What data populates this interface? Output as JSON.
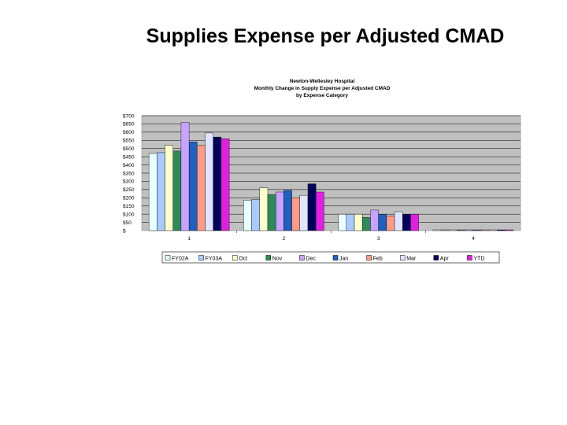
{
  "slide": {
    "title": "Supplies Expense per Adjusted CMAD"
  },
  "chart_data": {
    "type": "bar",
    "title_lines": [
      "Newton-Wellesley Hospital",
      "Monthly Change in Supply Expense per Adjusted CMAD",
      "by Expense Category"
    ],
    "categories": [
      "1",
      "2",
      "3",
      "4"
    ],
    "ylim": [
      0,
      700
    ],
    "y_ticks": [
      0,
      50,
      100,
      150,
      200,
      250,
      300,
      350,
      400,
      450,
      500,
      550,
      600,
      650,
      700
    ],
    "y_tick_labels": [
      "$",
      "$50",
      "$100",
      "$150",
      "$200",
      "$250",
      "$300",
      "$350",
      "$400",
      "$450",
      "$500",
      "$550",
      "$600",
      "$650",
      "$700"
    ],
    "grid": true,
    "legend_position": "bottom",
    "series": [
      {
        "name": "FY02A",
        "color": "#e8ffff",
        "values": [
          470,
          185,
          100,
          0
        ]
      },
      {
        "name": "FY03A",
        "color": "#a9c9ff",
        "values": [
          475,
          190,
          100,
          0
        ]
      },
      {
        "name": "Oct",
        "color": "#ffffcc",
        "values": [
          520,
          260,
          100,
          0
        ]
      },
      {
        "name": "Nov",
        "color": "#2e8b57",
        "values": [
          485,
          220,
          80,
          0
        ]
      },
      {
        "name": "Dec",
        "color": "#c8a2ff",
        "values": [
          660,
          235,
          125,
          0
        ]
      },
      {
        "name": "Jan",
        "color": "#1f5fbf",
        "values": [
          540,
          245,
          100,
          0
        ]
      },
      {
        "name": "Feb",
        "color": "#ff9b87",
        "values": [
          520,
          200,
          90,
          0
        ]
      },
      {
        "name": "Mar",
        "color": "#e0e4ff",
        "values": [
          595,
          215,
          115,
          0
        ]
      },
      {
        "name": "Apr",
        "color": "#00005c",
        "values": [
          570,
          285,
          100,
          0
        ]
      },
      {
        "name": "YTD",
        "color": "#e020e0",
        "values": [
          560,
          235,
          100,
          0
        ]
      }
    ]
  }
}
